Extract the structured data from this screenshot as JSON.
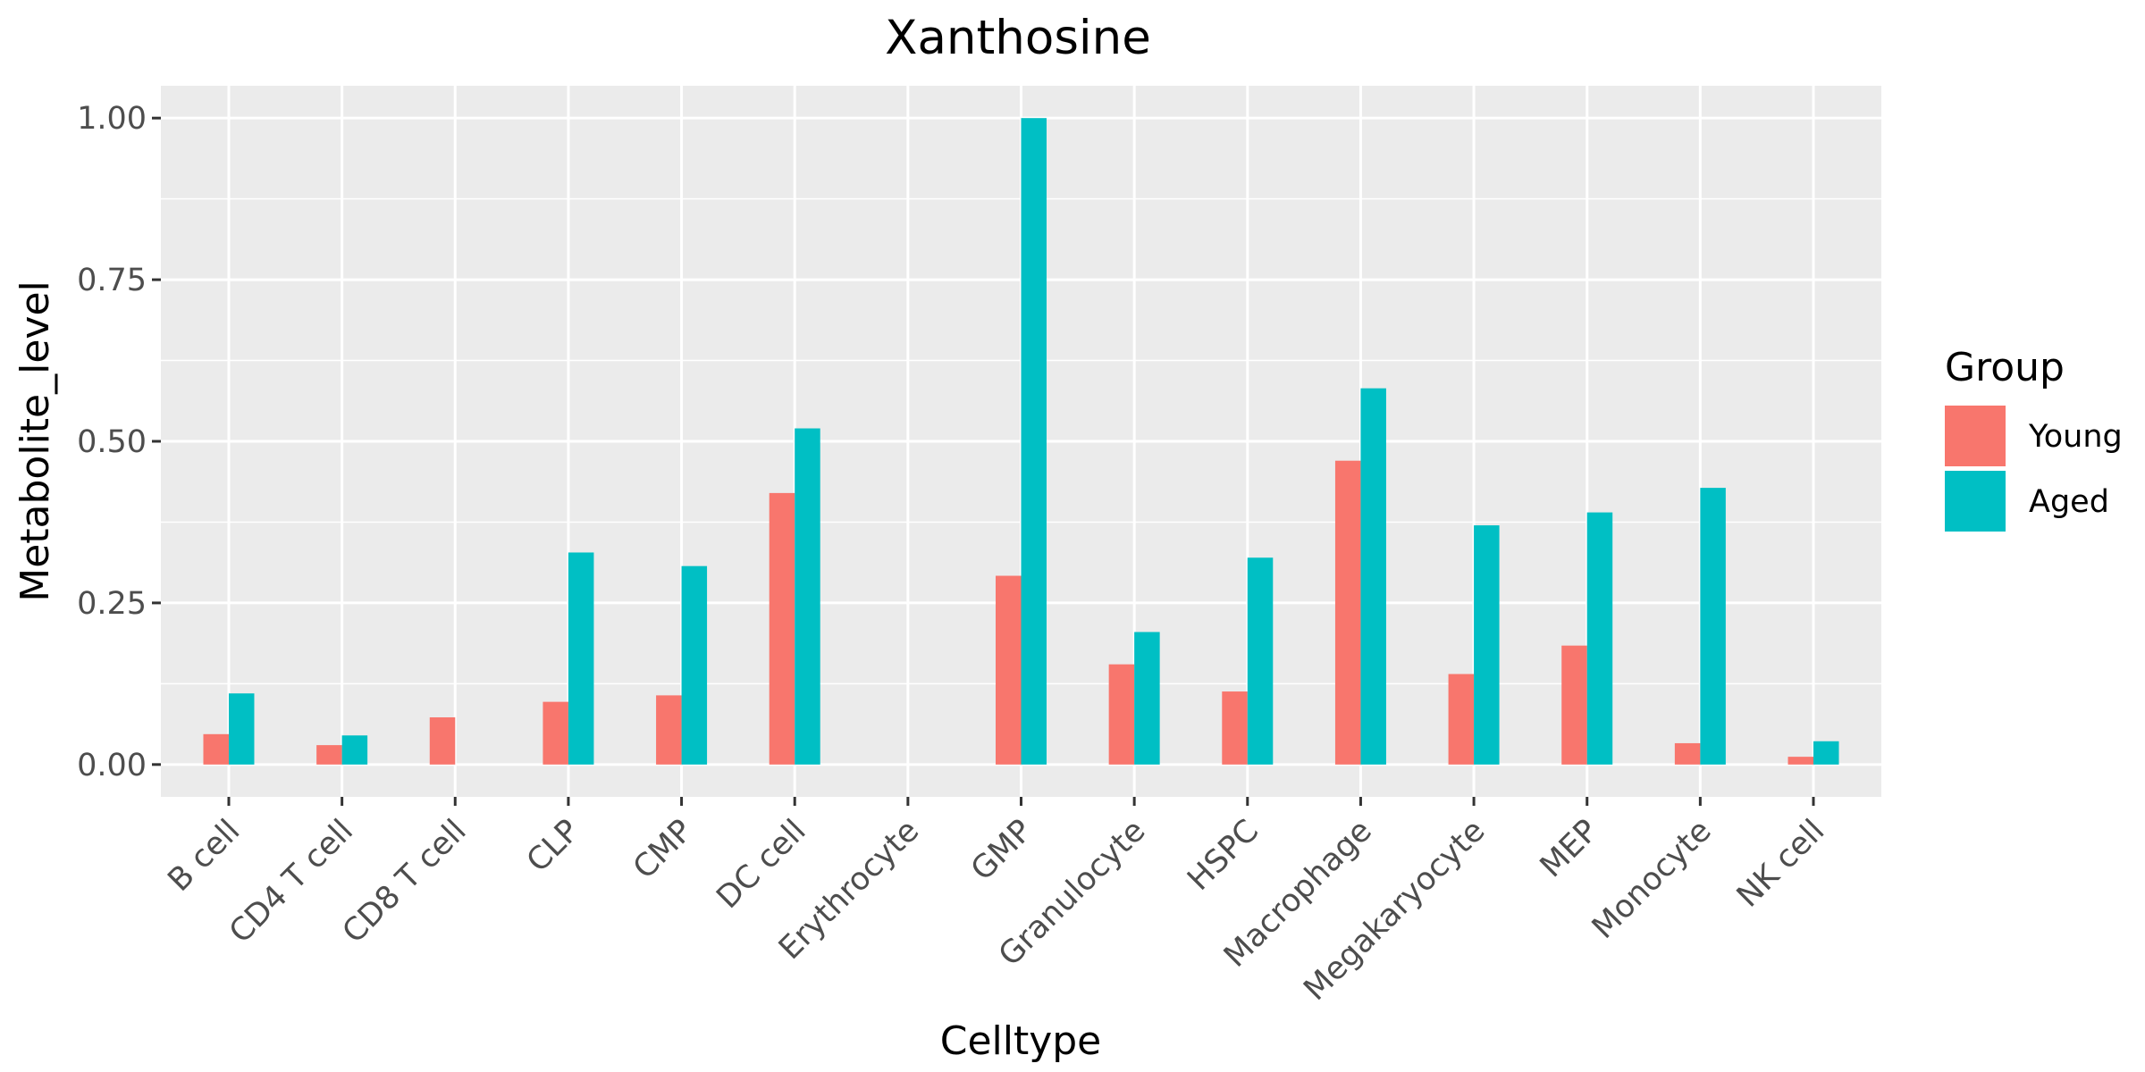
{
  "chart_data": {
    "type": "bar",
    "title": "Xanthosine",
    "xlabel": "Celltype",
    "ylabel": "Metabolite_level",
    "ylim": [
      -0.05,
      1.05
    ],
    "yticks": [
      0.0,
      0.25,
      0.5,
      0.75,
      1.0
    ],
    "ytick_labels": [
      "0.00",
      "0.25",
      "0.50",
      "0.75",
      "1.00"
    ],
    "grid": true,
    "legend_position": "right",
    "legend_title": "Group",
    "categories": [
      "B cell",
      "CD4 T cell",
      "CD8 T cell",
      "CLP",
      "CMP",
      "DC cell",
      "Erythrocyte",
      "GMP",
      "Granulocyte",
      "HSPC",
      "Macrophage",
      "Megakaryocyte",
      "MEP",
      "Monocyte",
      "NK cell"
    ],
    "series": [
      {
        "name": "Young",
        "color": "#F8766D",
        "values": [
          0.047,
          0.03,
          0.073,
          0.097,
          0.107,
          0.42,
          0.0,
          0.292,
          0.155,
          0.113,
          0.47,
          0.14,
          0.184,
          0.033,
          0.012
        ]
      },
      {
        "name": "Aged",
        "color": "#00BFC4",
        "values": [
          0.11,
          0.045,
          0.0,
          0.328,
          0.307,
          0.52,
          0.0,
          1.0,
          0.205,
          0.32,
          0.582,
          0.37,
          0.39,
          0.428,
          0.036
        ]
      }
    ]
  }
}
